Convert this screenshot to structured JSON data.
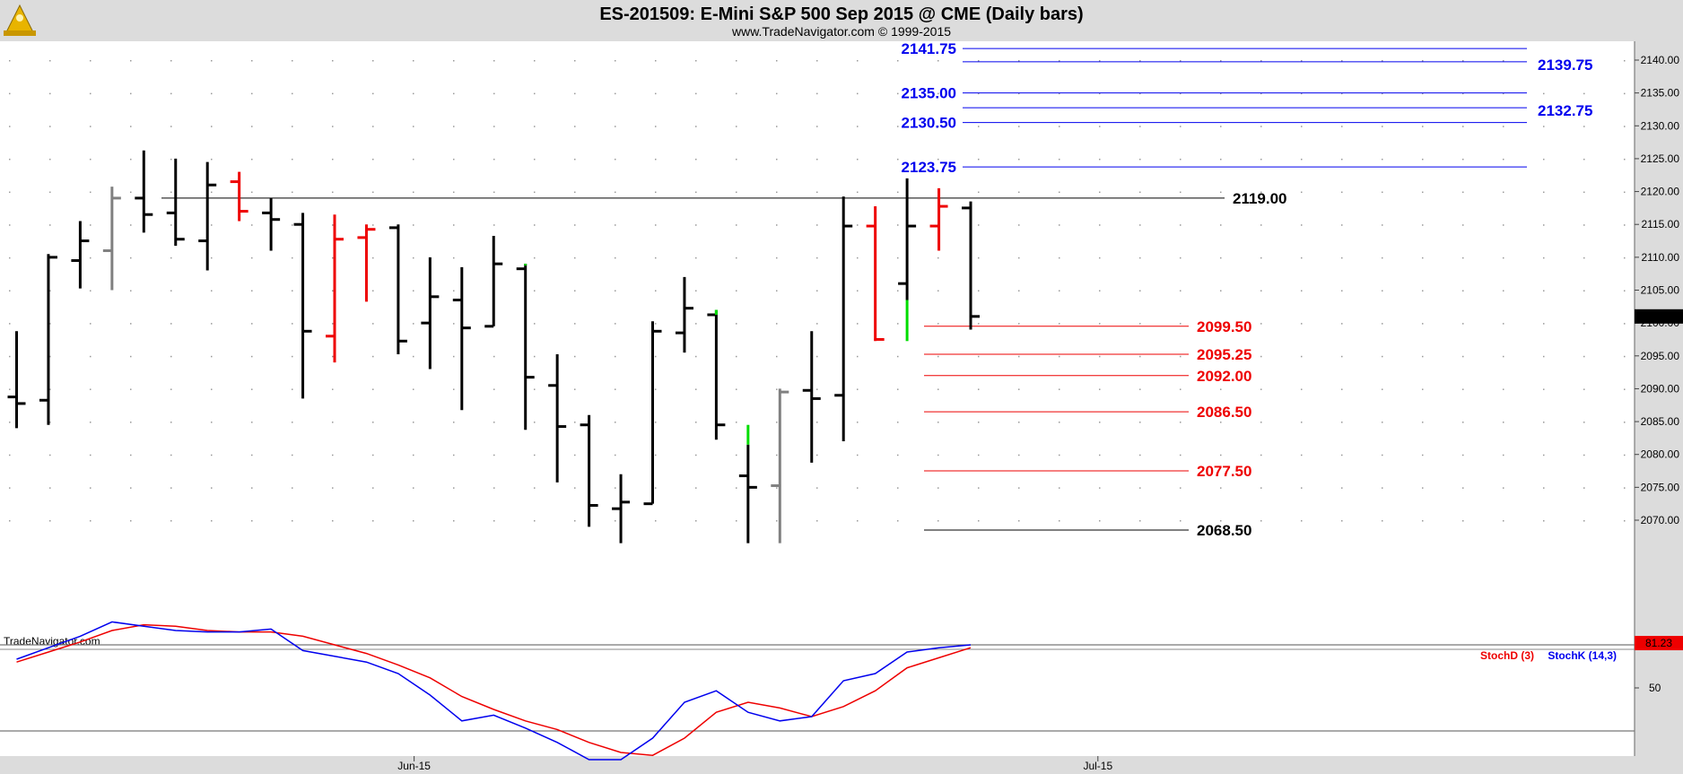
{
  "header": {
    "title": "ES-201509:  E-Mini S&P 500 Sep 2015 @ CME  (Daily bars)",
    "subtitle": "www.TradeNavigator.com © 1999-2015",
    "watermark": "TradeNavigator.com"
  },
  "chart_data": [
    {
      "type": "ohlc",
      "ylim": [
        2066,
        2144
      ],
      "yticks": [
        2070,
        2075,
        2080,
        2085,
        2090,
        2095,
        2100,
        2105,
        2110,
        2115,
        2120,
        2125,
        2130,
        2135,
        2140
      ],
      "ytick_labels": [
        "2070.00",
        "2075.00",
        "2080.00",
        "2085.00",
        "2090.00",
        "2095.00",
        "2100.00",
        "2105.00",
        "2110.00",
        "2115.00",
        "2120.00",
        "2125.00",
        "2130.00",
        "2135.00",
        "2140.00"
      ],
      "x_labels": [
        {
          "label": "Jun-15",
          "bar": 12.5
        },
        {
          "label": "Jul-15",
          "bar": 34
        }
      ],
      "last_price_label": "2101.00",
      "last_price": 2101.0,
      "bars": [
        {
          "o": 2088.75,
          "h": 2098.75,
          "l": 2084.0,
          "c": 2087.75,
          "color": "black"
        },
        {
          "o": 2088.25,
          "h": 2110.5,
          "l": 2084.5,
          "c": 2110.0,
          "color": "black"
        },
        {
          "o": 2109.5,
          "h": 2115.5,
          "l": 2105.25,
          "c": 2112.5,
          "color": "black"
        },
        {
          "o": 2111.0,
          "h": 2120.75,
          "l": 2105.0,
          "c": 2119.0,
          "color": "gray"
        },
        {
          "o": 2119.0,
          "h": 2126.25,
          "l": 2113.75,
          "c": 2116.5,
          "color": "black"
        },
        {
          "o": 2116.75,
          "h": 2125.0,
          "l": 2111.75,
          "c": 2112.75,
          "color": "black"
        },
        {
          "o": 2112.5,
          "h": 2124.5,
          "l": 2108.0,
          "c": 2121.0,
          "color": "black"
        },
        {
          "o": 2121.5,
          "h": 2123.0,
          "l": 2115.5,
          "c": 2117.0,
          "color": "red"
        },
        {
          "o": 2116.75,
          "h": 2119.0,
          "l": 2111.0,
          "c": 2115.75,
          "color": "black"
        },
        {
          "o": 2115.0,
          "h": 2116.75,
          "l": 2088.5,
          "c": 2098.75,
          "color": "black"
        },
        {
          "o": 2098.0,
          "h": 2116.5,
          "l": 2094.0,
          "c": 2112.75,
          "color": "red"
        },
        {
          "o": 2113.0,
          "h": 2115.0,
          "l": 2103.25,
          "c": 2114.25,
          "color": "red"
        },
        {
          "o": 2114.5,
          "h": 2115.0,
          "l": 2095.25,
          "c": 2097.25,
          "color": "black"
        },
        {
          "o": 2100.0,
          "h": 2110.0,
          "l": 2093.0,
          "c": 2104.0,
          "color": "black"
        },
        {
          "o": 2103.5,
          "h": 2108.5,
          "l": 2086.75,
          "c": 2099.25,
          "color": "black"
        },
        {
          "o": 2099.5,
          "h": 2113.25,
          "l": 2099.5,
          "c": 2109.0,
          "color": "black"
        },
        {
          "o": 2108.25,
          "h": 2109.0,
          "l": 2083.75,
          "c": 2091.75,
          "color": "black"
        },
        {
          "o": 2090.5,
          "h": 2095.25,
          "l": 2075.75,
          "c": 2084.25,
          "color": "black"
        },
        {
          "o": 2084.5,
          "h": 2086.0,
          "l": 2069.0,
          "c": 2072.25,
          "color": "black"
        },
        {
          "o": 2071.75,
          "h": 2077.0,
          "l": 2066.5,
          "c": 2072.75,
          "color": "black"
        },
        {
          "o": 2072.5,
          "h": 2100.25,
          "l": 2072.5,
          "c": 2098.75,
          "color": "black"
        },
        {
          "o": 2098.5,
          "h": 2107.0,
          "l": 2095.5,
          "c": 2102.25,
          "color": "black"
        },
        {
          "o": 2101.25,
          "h": 2102.0,
          "l": 2082.25,
          "c": 2084.5,
          "color": "black"
        },
        {
          "o": 2076.75,
          "h": 2081.5,
          "l": 2066.5,
          "c": 2075.0,
          "color": "black"
        },
        {
          "o": 2075.25,
          "h": 2090.0,
          "l": 2066.5,
          "c": 2089.5,
          "color": "gray"
        },
        {
          "o": 2089.75,
          "h": 2098.75,
          "l": 2078.75,
          "c": 2088.5,
          "color": "black"
        },
        {
          "o": 2089.0,
          "h": 2119.25,
          "l": 2082.0,
          "c": 2114.75,
          "color": "black"
        },
        {
          "o": 2114.75,
          "h": 2117.75,
          "l": 2097.25,
          "c": 2097.5,
          "color": "red"
        },
        {
          "o": 2106.0,
          "h": 2122.0,
          "l": 2103.5,
          "c": 2114.75,
          "color": "black"
        },
        {
          "o": 2114.75,
          "h": 2120.5,
          "l": 2111.0,
          "c": 2117.75,
          "color": "red"
        },
        {
          "o": 2117.5,
          "h": 2118.5,
          "l": 2099.0,
          "c": 2101.0,
          "color": "black"
        }
      ],
      "green_wicks": [
        {
          "bar": 16,
          "from": 2108.75,
          "to": 2109.0
        },
        {
          "bar": 22,
          "from": 2101.25,
          "to": 2102.0
        },
        {
          "bar": 23,
          "from": 2081.5,
          "to": 2084.5
        },
        {
          "bar": 28,
          "from": 2097.25,
          "to": 2103.5
        }
      ],
      "levels": [
        {
          "value": 2141.75,
          "label": "2141.75",
          "color": "#0000ee",
          "side": "left"
        },
        {
          "value": 2139.75,
          "label": "2139.75",
          "color": "#0000ee",
          "side": "right"
        },
        {
          "value": 2135.0,
          "label": "2135.00",
          "color": "#0000ee",
          "side": "left"
        },
        {
          "value": 2132.75,
          "label": "2132.75",
          "color": "#0000ee",
          "side": "right"
        },
        {
          "value": 2130.5,
          "label": "2130.50",
          "color": "#0000ee",
          "side": "left"
        },
        {
          "value": 2123.75,
          "label": "2123.75",
          "color": "#0000ee",
          "side": "left"
        },
        {
          "value": 2119.0,
          "label": "2119.00",
          "color": "#000000",
          "side": "inline"
        },
        {
          "value": 2099.5,
          "label": "2099.50",
          "color": "#ee0000",
          "side": "inline"
        },
        {
          "value": 2095.25,
          "label": "2095.25",
          "color": "#ee0000",
          "side": "inline"
        },
        {
          "value": 2092.0,
          "label": "2092.00",
          "color": "#ee0000",
          "side": "inline"
        },
        {
          "value": 2086.5,
          "label": "2086.50",
          "color": "#ee0000",
          "side": "inline"
        },
        {
          "value": 2077.5,
          "label": "2077.50",
          "color": "#ee0000",
          "side": "inline"
        },
        {
          "value": 2068.5,
          "label": "2068.50",
          "color": "#000000",
          "side": "inline"
        }
      ]
    },
    {
      "type": "line",
      "ylim": [
        0,
        100
      ],
      "ytick_labels": [
        {
          "value": 50,
          "label": "50"
        }
      ],
      "reference_lines": [
        80,
        20
      ],
      "last_value_label": "81.23",
      "last_value": 81.23,
      "legend": [
        {
          "name": "StochD (3)",
          "color": "#ee0000"
        },
        {
          "name": "StochK (14,3)",
          "color": "#0000ee"
        }
      ],
      "series": [
        {
          "name": "StochK (14,3)",
          "color": "#0000ee",
          "values": [
            70,
            78,
            86,
            96,
            93,
            90,
            89,
            89,
            91,
            76,
            72,
            68,
            60,
            45,
            27,
            31,
            22,
            12,
            0,
            0,
            15,
            40,
            48,
            33,
            27,
            30,
            55,
            60,
            75,
            78,
            80
          ]
        },
        {
          "name": "StochD (3)",
          "color": "#ee0000",
          "values": [
            68,
            75,
            82,
            90,
            94,
            93,
            90,
            89,
            89,
            86,
            80,
            74,
            66,
            57,
            44,
            35,
            27,
            21,
            12,
            5,
            3,
            15,
            33,
            40,
            36,
            30,
            37,
            48,
            64,
            71,
            78
          ]
        }
      ]
    }
  ]
}
